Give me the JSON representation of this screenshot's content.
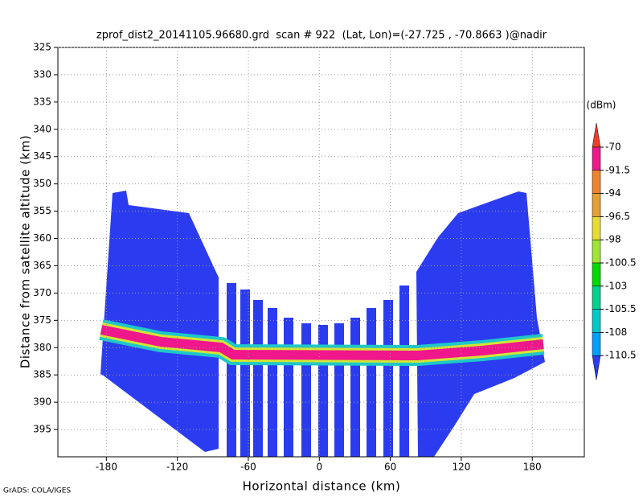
{
  "chart_data": {
    "type": "heatmap",
    "title": "zprof_dist2_20141105.96680.grd  scan # 922  (Lat, Lon)=(-27.725 , -70.8663 )@nadir",
    "x_label": "Horizontal distance (km)",
    "y_label": "Distance from satellite altitude (km)",
    "footer": "GrADS: COLA/IGES",
    "xlim": [
      -221,
      224
    ],
    "xticks": [
      -180,
      -120,
      -60,
      0,
      60,
      120,
      180
    ],
    "ylim": [
      400,
      325
    ],
    "yticks": [
      325,
      330,
      335,
      340,
      345,
      350,
      355,
      360,
      365,
      370,
      375,
      380,
      385,
      390,
      395
    ],
    "grid": true,
    "colorbar": {
      "label": "(dBm)",
      "levels": [
        -70,
        -91.5,
        -94,
        -96.5,
        -98,
        -100.5,
        -103,
        -105.5,
        -108,
        -110.5
      ],
      "colors": [
        "#f03c28",
        "#f0168c",
        "#f0822a",
        "#e6a02d",
        "#e6dc32",
        "#a0e632",
        "#00dc00",
        "#00d28c",
        "#00c8c8",
        "#00a0ff",
        "#2b3cf0"
      ]
    }
  }
}
